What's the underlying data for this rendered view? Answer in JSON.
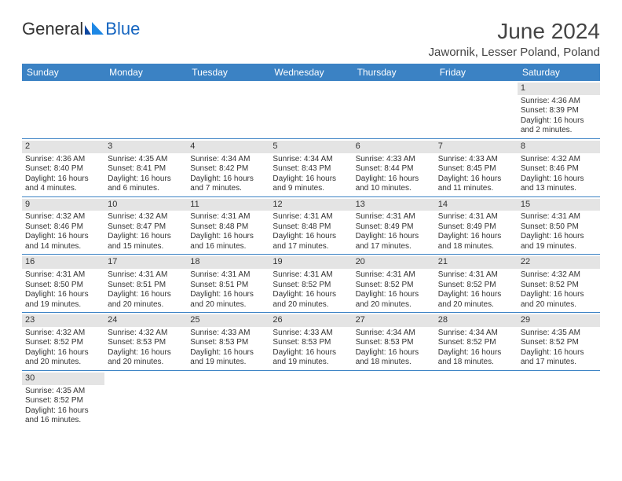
{
  "logo": {
    "text1": "General",
    "text2": "Blue"
  },
  "title": "June 2024",
  "location": "Jawornik, Lesser Poland, Poland",
  "colors": {
    "header_bg": "#3b82c4",
    "header_text": "#ffffff",
    "daynum_bg": "#e4e4e4",
    "rule": "#3b82c4",
    "text": "#333333",
    "logo_blue": "#1565c0"
  },
  "weekdays": [
    "Sunday",
    "Monday",
    "Tuesday",
    "Wednesday",
    "Thursday",
    "Friday",
    "Saturday"
  ],
  "weeks": [
    [
      null,
      null,
      null,
      null,
      null,
      null,
      {
        "n": "1",
        "sr": "Sunrise: 4:36 AM",
        "ss": "Sunset: 8:39 PM",
        "d1": "Daylight: 16 hours",
        "d2": "and 2 minutes."
      }
    ],
    [
      {
        "n": "2",
        "sr": "Sunrise: 4:36 AM",
        "ss": "Sunset: 8:40 PM",
        "d1": "Daylight: 16 hours",
        "d2": "and 4 minutes."
      },
      {
        "n": "3",
        "sr": "Sunrise: 4:35 AM",
        "ss": "Sunset: 8:41 PM",
        "d1": "Daylight: 16 hours",
        "d2": "and 6 minutes."
      },
      {
        "n": "4",
        "sr": "Sunrise: 4:34 AM",
        "ss": "Sunset: 8:42 PM",
        "d1": "Daylight: 16 hours",
        "d2": "and 7 minutes."
      },
      {
        "n": "5",
        "sr": "Sunrise: 4:34 AM",
        "ss": "Sunset: 8:43 PM",
        "d1": "Daylight: 16 hours",
        "d2": "and 9 minutes."
      },
      {
        "n": "6",
        "sr": "Sunrise: 4:33 AM",
        "ss": "Sunset: 8:44 PM",
        "d1": "Daylight: 16 hours",
        "d2": "and 10 minutes."
      },
      {
        "n": "7",
        "sr": "Sunrise: 4:33 AM",
        "ss": "Sunset: 8:45 PM",
        "d1": "Daylight: 16 hours",
        "d2": "and 11 minutes."
      },
      {
        "n": "8",
        "sr": "Sunrise: 4:32 AM",
        "ss": "Sunset: 8:46 PM",
        "d1": "Daylight: 16 hours",
        "d2": "and 13 minutes."
      }
    ],
    [
      {
        "n": "9",
        "sr": "Sunrise: 4:32 AM",
        "ss": "Sunset: 8:46 PM",
        "d1": "Daylight: 16 hours",
        "d2": "and 14 minutes."
      },
      {
        "n": "10",
        "sr": "Sunrise: 4:32 AM",
        "ss": "Sunset: 8:47 PM",
        "d1": "Daylight: 16 hours",
        "d2": "and 15 minutes."
      },
      {
        "n": "11",
        "sr": "Sunrise: 4:31 AM",
        "ss": "Sunset: 8:48 PM",
        "d1": "Daylight: 16 hours",
        "d2": "and 16 minutes."
      },
      {
        "n": "12",
        "sr": "Sunrise: 4:31 AM",
        "ss": "Sunset: 8:48 PM",
        "d1": "Daylight: 16 hours",
        "d2": "and 17 minutes."
      },
      {
        "n": "13",
        "sr": "Sunrise: 4:31 AM",
        "ss": "Sunset: 8:49 PM",
        "d1": "Daylight: 16 hours",
        "d2": "and 17 minutes."
      },
      {
        "n": "14",
        "sr": "Sunrise: 4:31 AM",
        "ss": "Sunset: 8:49 PM",
        "d1": "Daylight: 16 hours",
        "d2": "and 18 minutes."
      },
      {
        "n": "15",
        "sr": "Sunrise: 4:31 AM",
        "ss": "Sunset: 8:50 PM",
        "d1": "Daylight: 16 hours",
        "d2": "and 19 minutes."
      }
    ],
    [
      {
        "n": "16",
        "sr": "Sunrise: 4:31 AM",
        "ss": "Sunset: 8:50 PM",
        "d1": "Daylight: 16 hours",
        "d2": "and 19 minutes."
      },
      {
        "n": "17",
        "sr": "Sunrise: 4:31 AM",
        "ss": "Sunset: 8:51 PM",
        "d1": "Daylight: 16 hours",
        "d2": "and 20 minutes."
      },
      {
        "n": "18",
        "sr": "Sunrise: 4:31 AM",
        "ss": "Sunset: 8:51 PM",
        "d1": "Daylight: 16 hours",
        "d2": "and 20 minutes."
      },
      {
        "n": "19",
        "sr": "Sunrise: 4:31 AM",
        "ss": "Sunset: 8:52 PM",
        "d1": "Daylight: 16 hours",
        "d2": "and 20 minutes."
      },
      {
        "n": "20",
        "sr": "Sunrise: 4:31 AM",
        "ss": "Sunset: 8:52 PM",
        "d1": "Daylight: 16 hours",
        "d2": "and 20 minutes."
      },
      {
        "n": "21",
        "sr": "Sunrise: 4:31 AM",
        "ss": "Sunset: 8:52 PM",
        "d1": "Daylight: 16 hours",
        "d2": "and 20 minutes."
      },
      {
        "n": "22",
        "sr": "Sunrise: 4:32 AM",
        "ss": "Sunset: 8:52 PM",
        "d1": "Daylight: 16 hours",
        "d2": "and 20 minutes."
      }
    ],
    [
      {
        "n": "23",
        "sr": "Sunrise: 4:32 AM",
        "ss": "Sunset: 8:52 PM",
        "d1": "Daylight: 16 hours",
        "d2": "and 20 minutes."
      },
      {
        "n": "24",
        "sr": "Sunrise: 4:32 AM",
        "ss": "Sunset: 8:53 PM",
        "d1": "Daylight: 16 hours",
        "d2": "and 20 minutes."
      },
      {
        "n": "25",
        "sr": "Sunrise: 4:33 AM",
        "ss": "Sunset: 8:53 PM",
        "d1": "Daylight: 16 hours",
        "d2": "and 19 minutes."
      },
      {
        "n": "26",
        "sr": "Sunrise: 4:33 AM",
        "ss": "Sunset: 8:53 PM",
        "d1": "Daylight: 16 hours",
        "d2": "and 19 minutes."
      },
      {
        "n": "27",
        "sr": "Sunrise: 4:34 AM",
        "ss": "Sunset: 8:53 PM",
        "d1": "Daylight: 16 hours",
        "d2": "and 18 minutes."
      },
      {
        "n": "28",
        "sr": "Sunrise: 4:34 AM",
        "ss": "Sunset: 8:52 PM",
        "d1": "Daylight: 16 hours",
        "d2": "and 18 minutes."
      },
      {
        "n": "29",
        "sr": "Sunrise: 4:35 AM",
        "ss": "Sunset: 8:52 PM",
        "d1": "Daylight: 16 hours",
        "d2": "and 17 minutes."
      }
    ],
    [
      {
        "n": "30",
        "sr": "Sunrise: 4:35 AM",
        "ss": "Sunset: 8:52 PM",
        "d1": "Daylight: 16 hours",
        "d2": "and 16 minutes."
      },
      null,
      null,
      null,
      null,
      null,
      null
    ]
  ]
}
